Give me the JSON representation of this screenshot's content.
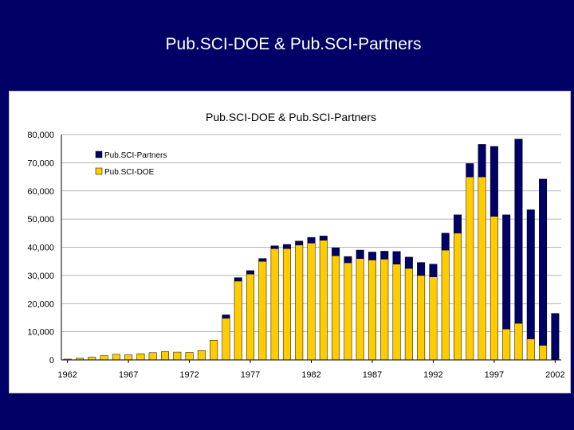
{
  "slide": {
    "title": "Pub.SCI-DOE & Pub.SCI-Partners"
  },
  "colors": {
    "background": "#000066",
    "partners": "#000066",
    "doe": "#ffcc00"
  },
  "chart_data": {
    "type": "bar",
    "stacked": true,
    "title": "Pub.SCI-DOE & Pub.SCI-Partners",
    "xlabel": "",
    "ylabel": "",
    "ylim": [
      0,
      80000
    ],
    "y_ticks": [
      "0",
      "10,000",
      "20,000",
      "30,000",
      "40,000",
      "50,000",
      "60,000",
      "70,000",
      "80,000"
    ],
    "x_tick_labels": [
      "1962",
      "1967",
      "1972",
      "1977",
      "1982",
      "1987",
      "1992",
      "1997",
      "2002"
    ],
    "legend_position": "top-left",
    "categories": [
      1962,
      1963,
      1964,
      1965,
      1966,
      1967,
      1968,
      1969,
      1970,
      1971,
      1972,
      1973,
      1974,
      1975,
      1976,
      1977,
      1978,
      1979,
      1980,
      1981,
      1982,
      1983,
      1984,
      1985,
      1986,
      1987,
      1988,
      1989,
      1990,
      1991,
      1992,
      1993,
      1994,
      1995,
      1996,
      1997,
      1998,
      1999,
      2000,
      2001,
      2002
    ],
    "series": [
      {
        "name": "Pub.SCI-DOE",
        "color": "#ffcc00",
        "values": [
          300,
          600,
          1000,
          1500,
          2000,
          1800,
          2200,
          2600,
          2900,
          2800,
          2700,
          3300,
          7000,
          14800,
          28000,
          30500,
          35000,
          39500,
          39500,
          40800,
          41500,
          42500,
          37000,
          34500,
          36000,
          35500,
          35800,
          34000,
          32500,
          30000,
          29500,
          39000,
          45000,
          65000,
          65000,
          51000,
          11000,
          13000,
          7500,
          5200,
          0
        ]
      },
      {
        "name": "Pub.SCI-Partners",
        "color": "#000066",
        "values": [
          0,
          0,
          0,
          0,
          0,
          0,
          0,
          0,
          0,
          0,
          0,
          0,
          0,
          1200,
          1200,
          1200,
          1000,
          1000,
          1500,
          1400,
          2000,
          1500,
          2800,
          2200,
          3000,
          2800,
          2800,
          4500,
          4000,
          4600,
          4500,
          6000,
          6500,
          4700,
          11500,
          24800,
          40500,
          65400,
          45800,
          59000,
          16500
        ]
      }
    ]
  }
}
